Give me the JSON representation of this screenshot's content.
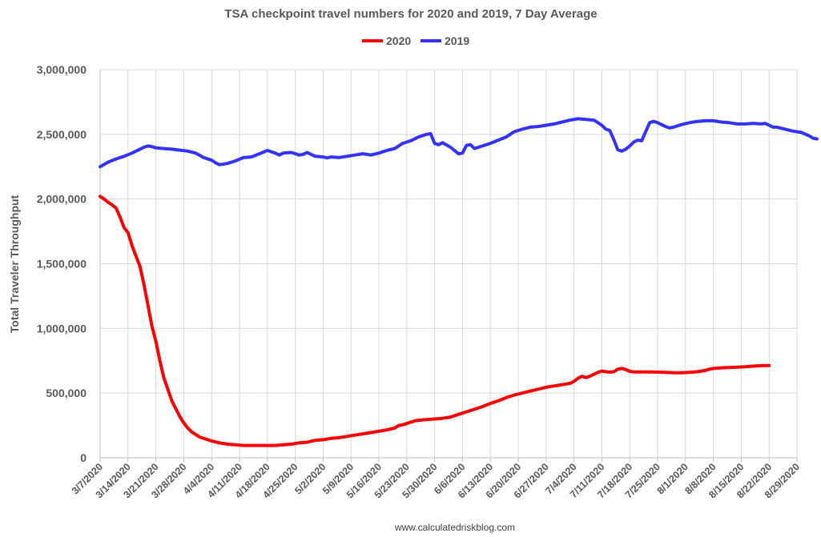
{
  "chart_data": {
    "type": "line",
    "title": "TSA checkpoint travel numbers for 2020 and 2019, 7 Day Average",
    "ylabel": "Total Traveler Throughput",
    "xlabel": "",
    "source": "www.calculatedriskblog.com",
    "ylim": [
      0,
      3000000
    ],
    "y_ticks": [
      0,
      500000,
      1000000,
      1500000,
      2000000,
      2500000,
      3000000
    ],
    "y_tick_labels": [
      "0",
      "500,000",
      "1,000,000",
      "1,500,000",
      "2,000,000",
      "2,500,000",
      "3,000,000"
    ],
    "x_range_days": [
      0,
      175
    ],
    "x_tick_days": [
      0,
      7,
      14,
      21,
      28,
      35,
      42,
      49,
      56,
      63,
      70,
      77,
      84,
      91,
      98,
      105,
      112,
      119,
      126,
      133,
      140,
      147,
      154,
      161,
      168,
      175
    ],
    "x_tick_labels": [
      "3/7/2020",
      "3/14/2020",
      "3/21/2020",
      "3/28/2020",
      "4/4/2020",
      "4/11/2020",
      "4/18/2020",
      "4/25/2020",
      "5/2/2020",
      "5/9/2020",
      "5/16/2020",
      "5/23/2020",
      "5/30/2020",
      "6/6/2020",
      "6/13/2020",
      "6/20/2020",
      "6/27/2020",
      "7/4/2020",
      "7/11/2020",
      "7/18/2020",
      "7/25/2020",
      "8/1/2020",
      "8/8/2020",
      "8/15/2020",
      "8/22/2020",
      "8/29/2020"
    ],
    "legend": [
      "2020",
      "2019"
    ],
    "series": [
      {
        "name": "2020",
        "color": "#ff0000",
        "points": [
          [
            0,
            2020000
          ],
          [
            1,
            2000000
          ],
          [
            2,
            1975000
          ],
          [
            3,
            1955000
          ],
          [
            4,
            1930000
          ],
          [
            5,
            1860000
          ],
          [
            6,
            1780000
          ],
          [
            7,
            1740000
          ],
          [
            8,
            1640000
          ],
          [
            9,
            1560000
          ],
          [
            10,
            1480000
          ],
          [
            11,
            1340000
          ],
          [
            12,
            1180000
          ],
          [
            13,
            1020000
          ],
          [
            14,
            900000
          ],
          [
            15,
            750000
          ],
          [
            16,
            620000
          ],
          [
            17,
            530000
          ],
          [
            18,
            440000
          ],
          [
            19,
            380000
          ],
          [
            20,
            320000
          ],
          [
            21,
            270000
          ],
          [
            22,
            230000
          ],
          [
            23,
            200000
          ],
          [
            24,
            180000
          ],
          [
            25,
            160000
          ],
          [
            26,
            150000
          ],
          [
            28,
            130000
          ],
          [
            30,
            115000
          ],
          [
            32,
            105000
          ],
          [
            34,
            100000
          ],
          [
            36,
            95000
          ],
          [
            40,
            95000
          ],
          [
            44,
            95000
          ],
          [
            46,
            100000
          ],
          [
            48,
            105000
          ],
          [
            50,
            115000
          ],
          [
            52,
            120000
          ],
          [
            54,
            135000
          ],
          [
            56,
            140000
          ],
          [
            58,
            150000
          ],
          [
            60,
            155000
          ],
          [
            62,
            165000
          ],
          [
            64,
            175000
          ],
          [
            66,
            185000
          ],
          [
            68,
            195000
          ],
          [
            70,
            205000
          ],
          [
            72,
            215000
          ],
          [
            74,
            230000
          ],
          [
            75,
            250000
          ],
          [
            76,
            255000
          ],
          [
            77,
            265000
          ],
          [
            78,
            275000
          ],
          [
            79,
            285000
          ],
          [
            80,
            290000
          ],
          [
            82,
            295000
          ],
          [
            84,
            300000
          ],
          [
            86,
            305000
          ],
          [
            88,
            315000
          ],
          [
            90,
            335000
          ],
          [
            92,
            355000
          ],
          [
            94,
            375000
          ],
          [
            96,
            395000
          ],
          [
            98,
            420000
          ],
          [
            100,
            440000
          ],
          [
            102,
            465000
          ],
          [
            104,
            485000
          ],
          [
            106,
            500000
          ],
          [
            108,
            515000
          ],
          [
            110,
            530000
          ],
          [
            112,
            545000
          ],
          [
            114,
            555000
          ],
          [
            116,
            565000
          ],
          [
            118,
            575000
          ],
          [
            119,
            590000
          ],
          [
            120,
            615000
          ],
          [
            121,
            630000
          ],
          [
            122,
            620000
          ],
          [
            123,
            630000
          ],
          [
            124,
            645000
          ],
          [
            125,
            660000
          ],
          [
            126,
            670000
          ],
          [
            127,
            665000
          ],
          [
            128,
            662000
          ],
          [
            129,
            665000
          ],
          [
            130,
            685000
          ],
          [
            131,
            690000
          ],
          [
            132,
            682000
          ],
          [
            133,
            668000
          ],
          [
            134,
            663000
          ],
          [
            136,
            663000
          ],
          [
            138,
            663000
          ],
          [
            140,
            662000
          ],
          [
            142,
            660000
          ],
          [
            144,
            657000
          ],
          [
            146,
            657000
          ],
          [
            148,
            660000
          ],
          [
            150,
            665000
          ],
          [
            152,
            675000
          ],
          [
            153,
            685000
          ],
          [
            154,
            690000
          ],
          [
            156,
            695000
          ],
          [
            158,
            697000
          ],
          [
            160,
            700000
          ],
          [
            162,
            703000
          ],
          [
            164,
            708000
          ],
          [
            166,
            712000
          ],
          [
            168,
            713000
          ]
        ]
      },
      {
        "name": "2019",
        "color": "#3333ff",
        "points": [
          [
            0,
            2250000
          ],
          [
            2,
            2285000
          ],
          [
            4,
            2310000
          ],
          [
            6,
            2330000
          ],
          [
            8,
            2355000
          ],
          [
            10,
            2385000
          ],
          [
            11,
            2400000
          ],
          [
            12,
            2410000
          ],
          [
            13,
            2405000
          ],
          [
            14,
            2395000
          ],
          [
            16,
            2390000
          ],
          [
            18,
            2385000
          ],
          [
            20,
            2378000
          ],
          [
            22,
            2370000
          ],
          [
            24,
            2355000
          ],
          [
            26,
            2320000
          ],
          [
            28,
            2300000
          ],
          [
            29,
            2280000
          ],
          [
            30,
            2265000
          ],
          [
            32,
            2275000
          ],
          [
            34,
            2295000
          ],
          [
            36,
            2320000
          ],
          [
            38,
            2325000
          ],
          [
            40,
            2350000
          ],
          [
            42,
            2375000
          ],
          [
            44,
            2355000
          ],
          [
            45,
            2340000
          ],
          [
            46,
            2355000
          ],
          [
            48,
            2360000
          ],
          [
            50,
            2340000
          ],
          [
            51,
            2345000
          ],
          [
            52,
            2360000
          ],
          [
            53,
            2345000
          ],
          [
            54,
            2330000
          ],
          [
            56,
            2325000
          ],
          [
            57,
            2318000
          ],
          [
            58,
            2325000
          ],
          [
            60,
            2320000
          ],
          [
            62,
            2330000
          ],
          [
            64,
            2340000
          ],
          [
            66,
            2350000
          ],
          [
            68,
            2340000
          ],
          [
            70,
            2355000
          ],
          [
            72,
            2375000
          ],
          [
            74,
            2390000
          ],
          [
            76,
            2430000
          ],
          [
            78,
            2450000
          ],
          [
            80,
            2480000
          ],
          [
            82,
            2500000
          ],
          [
            83,
            2505000
          ],
          [
            84,
            2430000
          ],
          [
            85,
            2420000
          ],
          [
            86,
            2435000
          ],
          [
            88,
            2400000
          ],
          [
            90,
            2350000
          ],
          [
            91,
            2355000
          ],
          [
            92,
            2415000
          ],
          [
            93,
            2420000
          ],
          [
            94,
            2390000
          ],
          [
            96,
            2410000
          ],
          [
            98,
            2430000
          ],
          [
            100,
            2455000
          ],
          [
            102,
            2480000
          ],
          [
            104,
            2520000
          ],
          [
            106,
            2540000
          ],
          [
            108,
            2555000
          ],
          [
            110,
            2560000
          ],
          [
            112,
            2570000
          ],
          [
            114,
            2580000
          ],
          [
            116,
            2595000
          ],
          [
            118,
            2610000
          ],
          [
            120,
            2620000
          ],
          [
            122,
            2615000
          ],
          [
            124,
            2610000
          ],
          [
            126,
            2570000
          ],
          [
            127,
            2540000
          ],
          [
            128,
            2530000
          ],
          [
            129,
            2460000
          ],
          [
            130,
            2380000
          ],
          [
            131,
            2370000
          ],
          [
            132,
            2385000
          ],
          [
            133,
            2410000
          ],
          [
            134,
            2440000
          ],
          [
            135,
            2455000
          ],
          [
            136,
            2450000
          ],
          [
            137,
            2520000
          ],
          [
            138,
            2590000
          ],
          [
            139,
            2600000
          ],
          [
            140,
            2590000
          ],
          [
            142,
            2560000
          ],
          [
            143,
            2550000
          ],
          [
            144,
            2555000
          ],
          [
            146,
            2575000
          ],
          [
            148,
            2590000
          ],
          [
            150,
            2600000
          ],
          [
            152,
            2605000
          ],
          [
            154,
            2605000
          ],
          [
            156,
            2595000
          ],
          [
            158,
            2590000
          ],
          [
            160,
            2580000
          ],
          [
            162,
            2580000
          ],
          [
            164,
            2585000
          ],
          [
            166,
            2580000
          ],
          [
            167,
            2585000
          ],
          [
            168,
            2570000
          ],
          [
            169,
            2555000
          ],
          [
            170,
            2555000
          ],
          [
            172,
            2540000
          ],
          [
            174,
            2525000
          ],
          [
            176,
            2515000
          ],
          [
            178,
            2490000
          ],
          [
            179,
            2470000
          ],
          [
            180,
            2465000
          ]
        ]
      }
    ]
  }
}
